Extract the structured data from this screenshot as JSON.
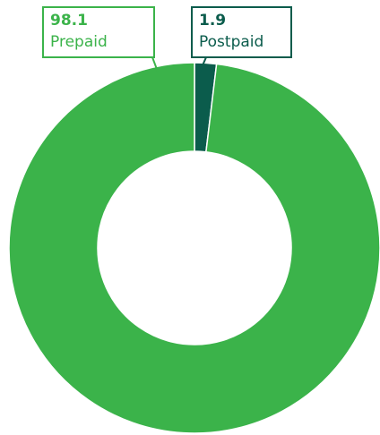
{
  "chart_data": {
    "type": "donut",
    "categories": [
      "Postpaid",
      "Prepaid"
    ],
    "values": [
      1.9,
      98.1
    ],
    "colors": [
      "#0b5c4c",
      "#3bb34a"
    ]
  }
}
